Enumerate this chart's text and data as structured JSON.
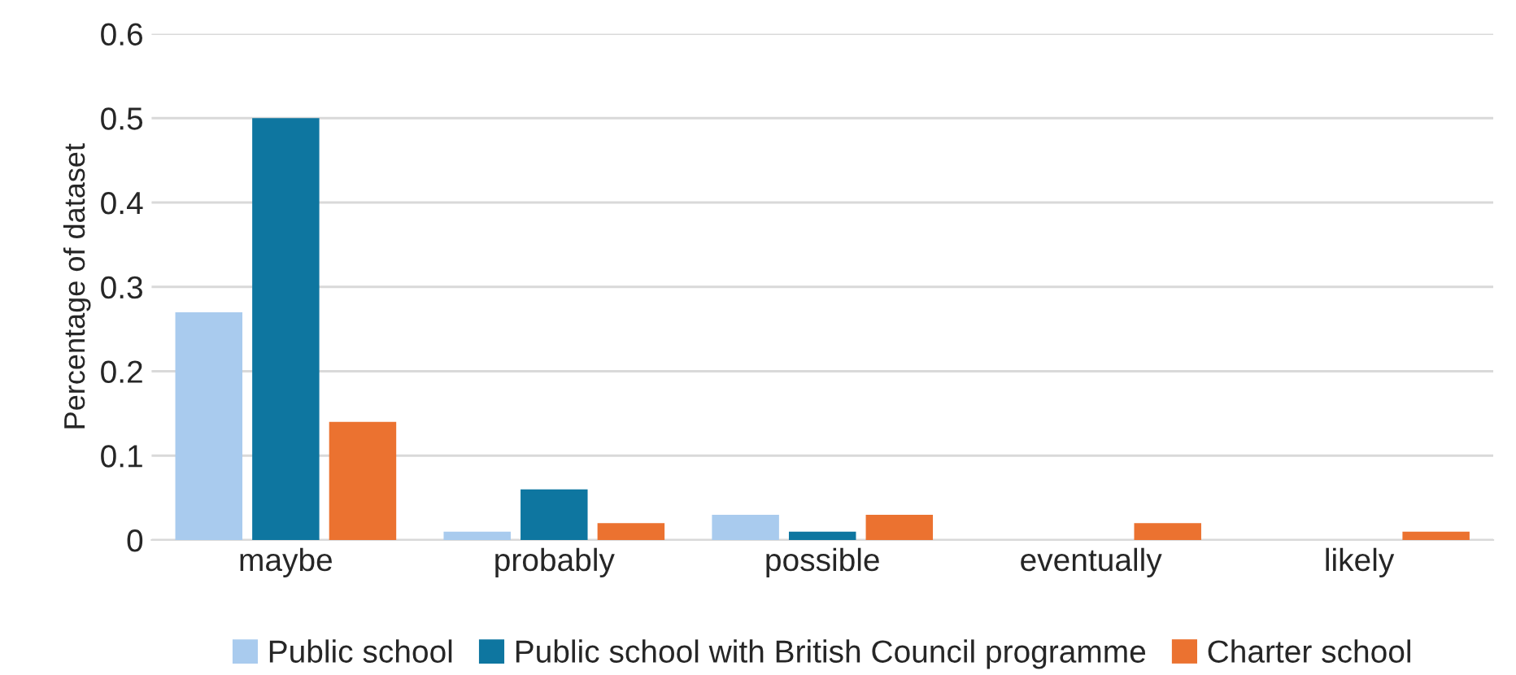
{
  "chart_data": {
    "type": "bar",
    "ylabel": "Percentage of dataset",
    "categories": [
      "maybe",
      "probably",
      "possible",
      "eventually",
      "likely"
    ],
    "series": [
      {
        "name": "Public school",
        "color": "#a9cbee",
        "values": [
          0.27,
          0.01,
          0.03,
          null,
          null
        ]
      },
      {
        "name": "Public school with British Council programme",
        "color": "#0e76a0",
        "values": [
          0.5,
          0.06,
          0.01,
          null,
          null
        ]
      },
      {
        "name": "Charter school",
        "color": "#eb7230",
        "values": [
          0.14,
          0.02,
          0.03,
          0.02,
          0.01
        ]
      }
    ],
    "ylim": [
      0,
      0.6
    ],
    "yticks": [
      0,
      0.1,
      0.2,
      0.3,
      0.4,
      0.5,
      0.6
    ],
    "grid": "y",
    "legend": "bottom"
  }
}
